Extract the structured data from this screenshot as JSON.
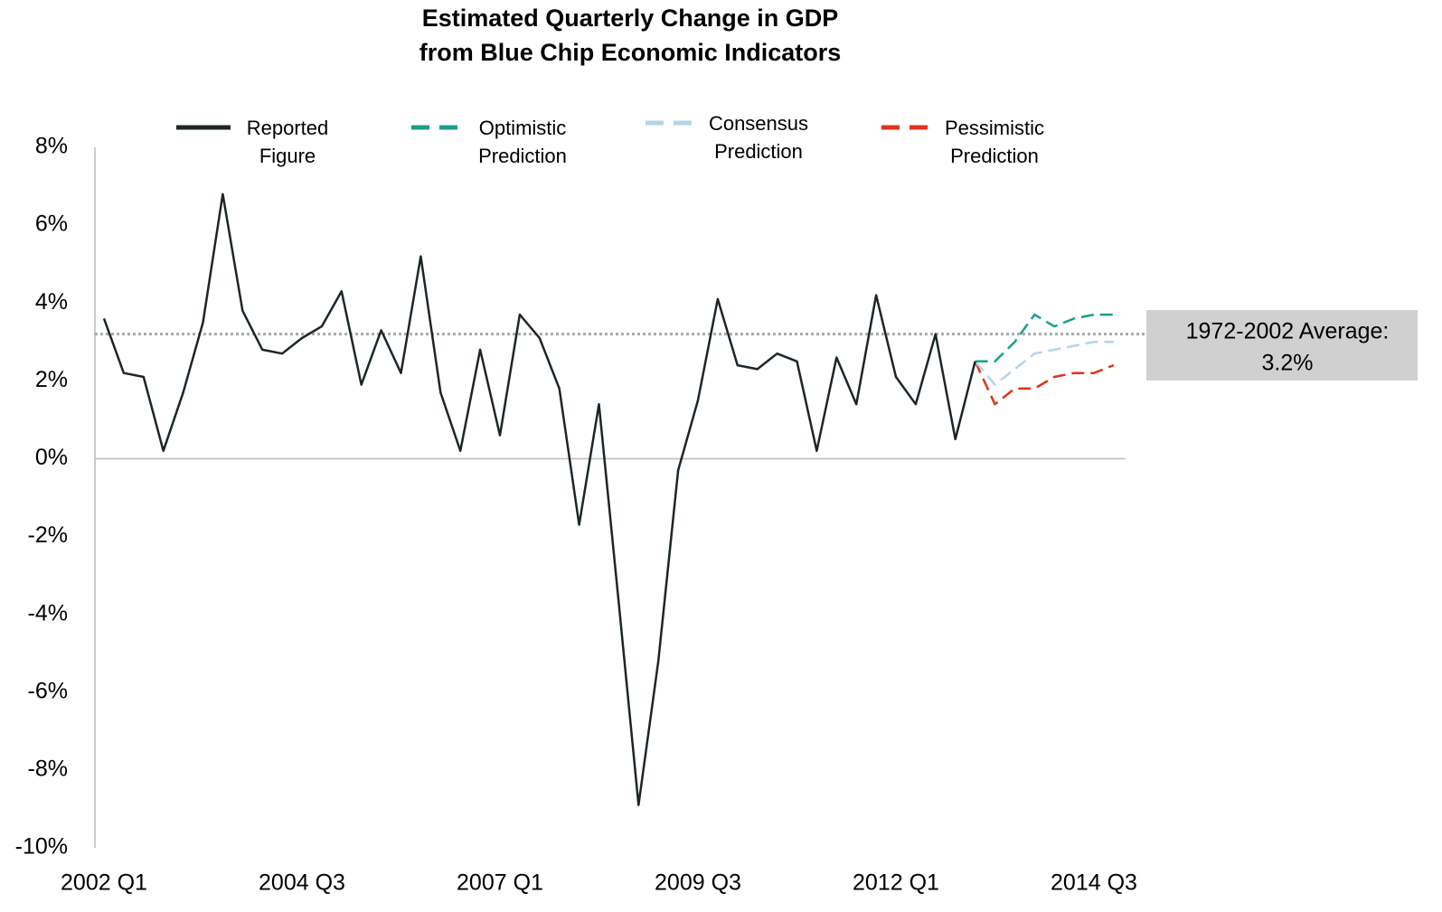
{
  "chart_data": {
    "type": "line",
    "title": [
      "Estimated Quarterly Change in GDP",
      "from Blue Chip Economic Indicators"
    ],
    "categories": [
      "2002 Q1",
      null,
      null,
      null,
      null,
      null,
      null,
      null,
      null,
      null,
      "2004 Q3",
      null,
      null,
      null,
      null,
      null,
      null,
      null,
      null,
      null,
      "2007 Q1",
      null,
      null,
      null,
      null,
      null,
      null,
      null,
      null,
      null,
      "2009 Q3",
      null,
      null,
      null,
      null,
      null,
      null,
      null,
      null,
      null,
      "2012 Q1",
      null,
      null,
      null,
      null,
      null,
      null,
      null,
      null,
      null,
      "2014 Q3",
      null
    ],
    "series": [
      {
        "name": "Reported Figure",
        "color": "#1c2626",
        "style": "solid",
        "values": [
          3.6,
          2.2,
          2.1,
          0.2,
          1.7,
          3.5,
          6.8,
          3.8,
          2.8,
          2.7,
          3.1,
          3.4,
          4.3,
          1.9,
          3.3,
          2.2,
          5.2,
          1.7,
          0.2,
          2.8,
          0.6,
          3.7,
          3.1,
          1.8,
          -1.7,
          1.4,
          -3.7,
          -8.9,
          -5.2,
          -0.3,
          1.5,
          4.1,
          2.4,
          2.3,
          2.7,
          2.5,
          0.2,
          2.6,
          1.4,
          4.2,
          2.1,
          1.4,
          3.2,
          0.5,
          2.5,
          null,
          null,
          null,
          null,
          null,
          null,
          null
        ]
      },
      {
        "name": "Optimistic Prediction",
        "color": "#1a9e8a",
        "style": "dashed",
        "values": [
          null,
          null,
          null,
          null,
          null,
          null,
          null,
          null,
          null,
          null,
          null,
          null,
          null,
          null,
          null,
          null,
          null,
          null,
          null,
          null,
          null,
          null,
          null,
          null,
          null,
          null,
          null,
          null,
          null,
          null,
          null,
          null,
          null,
          null,
          null,
          null,
          null,
          null,
          null,
          null,
          null,
          null,
          null,
          null,
          2.5,
          2.5,
          3.0,
          3.7,
          3.4,
          3.6,
          3.7,
          3.7
        ]
      },
      {
        "name": "Consensus Prediction",
        "color": "#b3d5ea",
        "style": "dashed",
        "values": [
          null,
          null,
          null,
          null,
          null,
          null,
          null,
          null,
          null,
          null,
          null,
          null,
          null,
          null,
          null,
          null,
          null,
          null,
          null,
          null,
          null,
          null,
          null,
          null,
          null,
          null,
          null,
          null,
          null,
          null,
          null,
          null,
          null,
          null,
          null,
          null,
          null,
          null,
          null,
          null,
          null,
          null,
          null,
          null,
          2.5,
          1.9,
          2.3,
          2.7,
          2.8,
          2.9,
          3.0,
          3.0
        ]
      },
      {
        "name": "Pessimistic Prediction",
        "color": "#e0331a",
        "style": "dashed",
        "values": [
          null,
          null,
          null,
          null,
          null,
          null,
          null,
          null,
          null,
          null,
          null,
          null,
          null,
          null,
          null,
          null,
          null,
          null,
          null,
          null,
          null,
          null,
          null,
          null,
          null,
          null,
          null,
          null,
          null,
          null,
          null,
          null,
          null,
          null,
          null,
          null,
          null,
          null,
          null,
          null,
          null,
          null,
          null,
          null,
          2.5,
          1.4,
          1.8,
          1.8,
          2.1,
          2.2,
          2.2,
          2.4
        ]
      }
    ],
    "ylim": [
      -10,
      8
    ],
    "yticks": [
      {
        "value": 8,
        "label": "8%"
      },
      {
        "value": 6,
        "label": "6%"
      },
      {
        "value": 4,
        "label": "4%"
      },
      {
        "value": 2,
        "label": "2%"
      },
      {
        "value": 0,
        "label": "0%"
      },
      {
        "value": -2,
        "label": "-2%"
      },
      {
        "value": -4,
        "label": "-4%"
      },
      {
        "value": -6,
        "label": "-6%"
      },
      {
        "value": -8,
        "label": "-8%"
      },
      {
        "value": -10,
        "label": "-10%"
      }
    ],
    "average": {
      "text": "1972-2002 Average:",
      "value": 3.2,
      "label": "3.2%",
      "color": "#aaaaaa"
    },
    "legend": "top",
    "grid": false
  }
}
